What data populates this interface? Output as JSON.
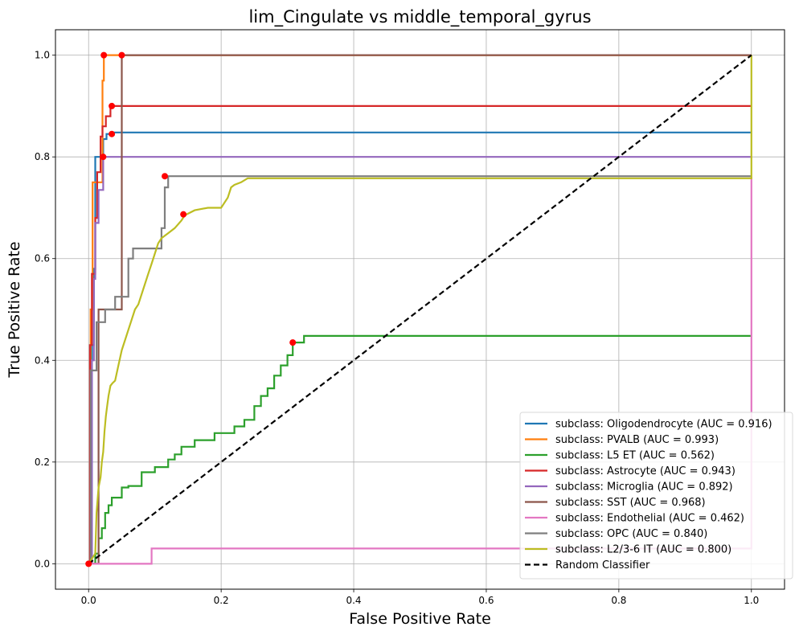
{
  "chart_data": {
    "type": "line",
    "title": "lim_Cingulate vs middle_temporal_gyrus",
    "xlabel": "False Positive Rate",
    "ylabel": "True Positive Rate",
    "xlim": [
      -0.05,
      1.05
    ],
    "ylim": [
      -0.05,
      1.05
    ],
    "xticks": [
      0.0,
      0.2,
      0.4,
      0.6,
      0.8,
      1.0
    ],
    "yticks": [
      0.0,
      0.2,
      0.4,
      0.6,
      0.8,
      1.0
    ],
    "xtick_labels": [
      "0.0",
      "0.2",
      "0.4",
      "0.6",
      "0.8",
      "1.0"
    ],
    "ytick_labels": [
      "0.0",
      "0.2",
      "0.4",
      "0.6",
      "0.8",
      "1.0"
    ],
    "grid": true,
    "legend_position": "lower right",
    "series": [
      {
        "name": "subclass: Oligodendrocyte (AUC = 0.916)",
        "color": "#1f77b4",
        "x": [
          0,
          0.005,
          0.005,
          0.008,
          0.008,
          0.01,
          0.01,
          0.013,
          0.013,
          0.022,
          0.022,
          0.027,
          0.027,
          0.035,
          0.035,
          1.0
        ],
        "y": [
          0,
          0,
          0.43,
          0.43,
          0.58,
          0.58,
          0.8,
          0.8,
          0.8,
          0.8,
          0.835,
          0.835,
          0.845,
          0.845,
          0.848,
          0.848
        ],
        "marker": [
          0.035,
          0.845
        ]
      },
      {
        "name": "subclass: PVALB (AUC = 0.993)",
        "color": "#ff7f0e",
        "x": [
          0,
          0.003,
          0.003,
          0.006,
          0.006,
          0.021,
          0.021,
          0.023,
          0.023,
          0.05,
          1.0
        ],
        "y": [
          0,
          0,
          0.5,
          0.5,
          0.75,
          0.75,
          0.95,
          0.95,
          1.0,
          1.0,
          1.0
        ],
        "marker": [
          0.023,
          1.0
        ]
      },
      {
        "name": "subclass: L5 ET (AUC = 0.562)",
        "color": "#2ca02c",
        "x": [
          0,
          0.01,
          0.01,
          0.015,
          0.015,
          0.02,
          0.02,
          0.025,
          0.025,
          0.03,
          0.03,
          0.035,
          0.035,
          0.04,
          0.04,
          0.05,
          0.05,
          0.06,
          0.06,
          0.08,
          0.08,
          0.1,
          0.1,
          0.12,
          0.12,
          0.13,
          0.13,
          0.14,
          0.14,
          0.16,
          0.16,
          0.19,
          0.19,
          0.22,
          0.22,
          0.235,
          0.235,
          0.25,
          0.25,
          0.26,
          0.26,
          0.27,
          0.27,
          0.28,
          0.28,
          0.29,
          0.29,
          0.3,
          0.3,
          0.308,
          0.308,
          0.325,
          0.325,
          1.0
        ],
        "y": [
          0,
          0,
          0.02,
          0.02,
          0.05,
          0.05,
          0.07,
          0.07,
          0.1,
          0.1,
          0.115,
          0.115,
          0.13,
          0.13,
          0.13,
          0.13,
          0.15,
          0.15,
          0.153,
          0.153,
          0.18,
          0.18,
          0.19,
          0.19,
          0.205,
          0.205,
          0.215,
          0.215,
          0.23,
          0.23,
          0.243,
          0.243,
          0.257,
          0.257,
          0.27,
          0.27,
          0.283,
          0.283,
          0.31,
          0.31,
          0.33,
          0.33,
          0.345,
          0.345,
          0.37,
          0.37,
          0.39,
          0.39,
          0.41,
          0.41,
          0.435,
          0.435,
          0.448,
          0.448
        ],
        "marker": [
          0.308,
          0.435
        ]
      },
      {
        "name": "subclass: Astrocyte (AUC = 0.943)",
        "color": "#d62728",
        "x": [
          0,
          0.002,
          0.002,
          0.005,
          0.005,
          0.01,
          0.01,
          0.013,
          0.013,
          0.018,
          0.018,
          0.021,
          0.021,
          0.026,
          0.026,
          0.033,
          0.033,
          1.0
        ],
        "y": [
          0,
          0,
          0.43,
          0.43,
          0.57,
          0.57,
          0.68,
          0.68,
          0.77,
          0.77,
          0.84,
          0.84,
          0.86,
          0.86,
          0.88,
          0.88,
          0.9,
          0.9
        ],
        "marker": [
          0.035,
          0.9
        ]
      },
      {
        "name": "subclass: Microglia (AUC = 0.892)",
        "color": "#9467bd",
        "x": [
          0,
          0.005,
          0.005,
          0.008,
          0.008,
          0.01,
          0.01,
          0.015,
          0.015,
          0.022,
          0.022,
          1.0
        ],
        "y": [
          0,
          0,
          0.4,
          0.4,
          0.56,
          0.56,
          0.67,
          0.67,
          0.735,
          0.735,
          0.8,
          0.8
        ],
        "marker": [
          0.022,
          0.8
        ]
      },
      {
        "name": "subclass: SST (AUC = 0.968)",
        "color": "#8c564b",
        "x": [
          0,
          0.015,
          0.015,
          0.05,
          0.05,
          1.0
        ],
        "y": [
          0,
          0,
          0.5,
          0.5,
          1.0,
          1.0
        ],
        "marker": [
          0.05,
          1.0
        ]
      },
      {
        "name": "subclass: Endothelial (AUC = 0.462)",
        "color": "#e377c2",
        "x": [
          0,
          0.095,
          0.095,
          1.0,
          1.0
        ],
        "y": [
          0,
          0,
          0.03,
          0.03,
          0.76
        ],
        "marker": [
          0.0,
          0.0
        ]
      },
      {
        "name": "subclass: OPC (AUC = 0.840)",
        "color": "#7f7f7f",
        "x": [
          0,
          0.003,
          0.003,
          0.012,
          0.012,
          0.025,
          0.025,
          0.04,
          0.04,
          0.06,
          0.06,
          0.067,
          0.067,
          0.11,
          0.11,
          0.115,
          0.115,
          0.12,
          0.12,
          1.0
        ],
        "y": [
          0,
          0,
          0.38,
          0.38,
          0.475,
          0.475,
          0.5,
          0.5,
          0.525,
          0.525,
          0.6,
          0.6,
          0.62,
          0.62,
          0.66,
          0.66,
          0.74,
          0.74,
          0.762,
          0.762
        ],
        "marker": [
          0.115,
          0.762
        ]
      },
      {
        "name": "subclass: L2/3-6 IT (AUC = 0.800)",
        "color": "#bcbd22",
        "x": [
          0,
          0.01,
          0.012,
          0.015,
          0.018,
          0.02,
          0.022,
          0.024,
          0.026,
          0.028,
          0.03,
          0.033,
          0.036,
          0.04,
          0.045,
          0.05,
          0.055,
          0.06,
          0.065,
          0.07,
          0.075,
          0.08,
          0.085,
          0.09,
          0.095,
          0.1,
          0.105,
          0.11,
          0.115,
          0.12,
          0.13,
          0.14,
          0.145,
          0.16,
          0.18,
          0.2,
          0.21,
          0.215,
          0.22,
          0.23,
          0.24,
          1.0,
          1.0
        ],
        "y": [
          0,
          0.02,
          0.1,
          0.15,
          0.17,
          0.2,
          0.22,
          0.26,
          0.29,
          0.31,
          0.33,
          0.35,
          0.355,
          0.36,
          0.39,
          0.42,
          0.44,
          0.46,
          0.48,
          0.5,
          0.51,
          0.53,
          0.55,
          0.57,
          0.59,
          0.61,
          0.63,
          0.64,
          0.645,
          0.65,
          0.66,
          0.675,
          0.685,
          0.695,
          0.7,
          0.7,
          0.72,
          0.74,
          0.745,
          0.75,
          0.758,
          0.758,
          1.0
        ],
        "marker": [
          0.143,
          0.687
        ]
      },
      {
        "name": "Random Classifier",
        "color": "#000000",
        "dashed": true,
        "x": [
          0,
          1.0
        ],
        "y": [
          0,
          1.0
        ]
      }
    ]
  }
}
